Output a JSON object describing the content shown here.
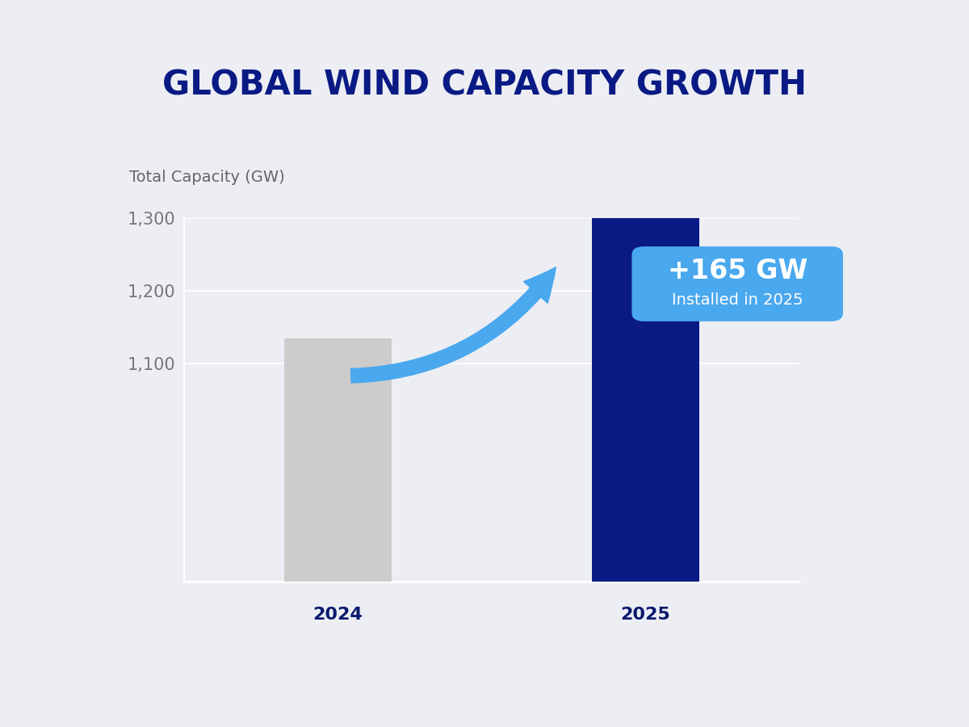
{
  "chart_data": {
    "type": "bar",
    "title": "GLOBAL WIND CAPACITY GROWTH",
    "y_label": "Total Capacity (GW)",
    "categories": [
      "2024",
      "2025"
    ],
    "values": [
      1135,
      1300
    ],
    "colors": [
      "#cccccc",
      "#0a1a84"
    ],
    "ylim": [
      800,
      1300
    ],
    "yticks": [
      {
        "value": 1100,
        "label": "1,100"
      },
      {
        "value": 1200,
        "label": "1,200"
      },
      {
        "value": 1300,
        "label": "1,300"
      }
    ],
    "grid": true,
    "annotation": {
      "title": "+165 GW",
      "text": "Installed in 2025"
    }
  }
}
